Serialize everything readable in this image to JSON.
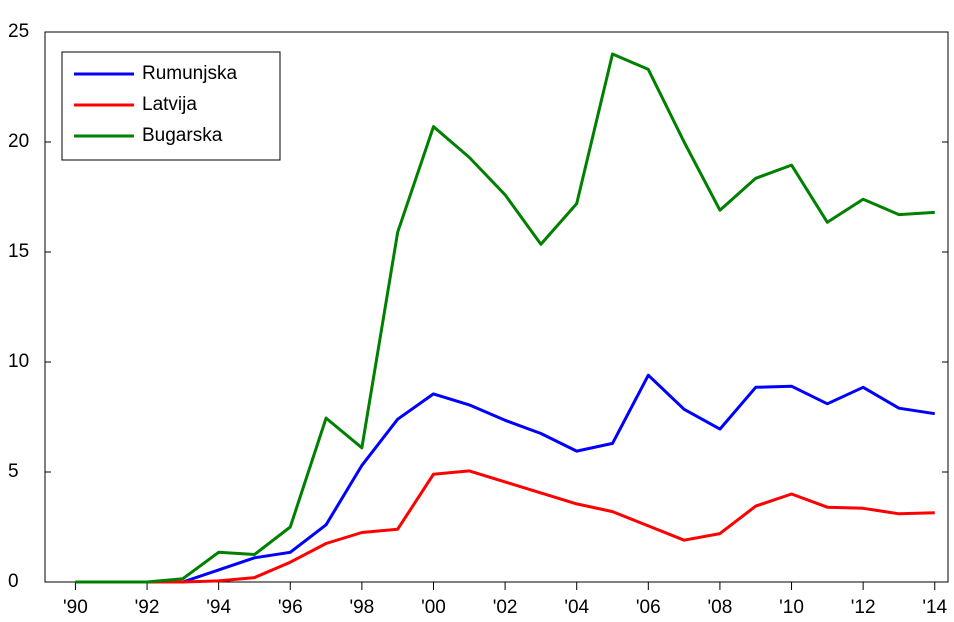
{
  "chart_data": {
    "type": "line",
    "x": [
      1990,
      1991,
      1992,
      1993,
      1994,
      1995,
      1996,
      1997,
      1998,
      1999,
      2000,
      2001,
      2002,
      2003,
      2004,
      2005,
      2006,
      2007,
      2008,
      2009,
      2010,
      2011,
      2012,
      2013,
      2014
    ],
    "series": [
      {
        "name": "Rumunjska",
        "color": "#0000ff",
        "values": [
          0,
          0,
          0,
          0,
          0.55,
          1.1,
          1.35,
          2.6,
          5.3,
          7.4,
          8.55,
          8.05,
          7.35,
          6.75,
          5.95,
          6.3,
          9.4,
          7.85,
          6.95,
          8.85,
          8.9,
          8.1,
          8.85,
          7.9,
          7.65
        ]
      },
      {
        "name": "Latvija",
        "color": "#ff0000",
        "values": [
          0,
          0,
          0,
          0,
          0.05,
          0.2,
          0.9,
          1.75,
          2.25,
          2.4,
          4.9,
          5.05,
          4.55,
          4.05,
          3.55,
          3.2,
          2.55,
          1.9,
          2.2,
          3.45,
          4.0,
          3.4,
          3.35,
          3.1,
          3.15
        ]
      },
      {
        "name": "Bugarska",
        "color": "#008000",
        "values": [
          0,
          0,
          0,
          0.15,
          1.35,
          1.25,
          2.5,
          7.45,
          6.1,
          15.9,
          20.7,
          19.3,
          17.6,
          15.35,
          17.2,
          24.0,
          23.3,
          20.0,
          16.9,
          18.35,
          18.95,
          16.35,
          17.4,
          16.7,
          16.8
        ]
      }
    ],
    "xlim": [
      1989.15,
      2014.37
    ],
    "xticks": [
      {
        "value": 1990,
        "label": "'90"
      },
      {
        "value": 1992,
        "label": "'92"
      },
      {
        "value": 1994,
        "label": "'94"
      },
      {
        "value": 1996,
        "label": "'96"
      },
      {
        "value": 1998,
        "label": "'98"
      },
      {
        "value": 2000,
        "label": "'00"
      },
      {
        "value": 2002,
        "label": "'02"
      },
      {
        "value": 2004,
        "label": "'04"
      },
      {
        "value": 2006,
        "label": "'06"
      },
      {
        "value": 2008,
        "label": "'08"
      },
      {
        "value": 2010,
        "label": "'10"
      },
      {
        "value": 2012,
        "label": "'12"
      },
      {
        "value": 2014,
        "label": "'14"
      }
    ],
    "ylim": [
      0,
      25
    ],
    "yticks": [
      0,
      5,
      10,
      15,
      20,
      25
    ],
    "grid": false,
    "legend": "top-left"
  }
}
